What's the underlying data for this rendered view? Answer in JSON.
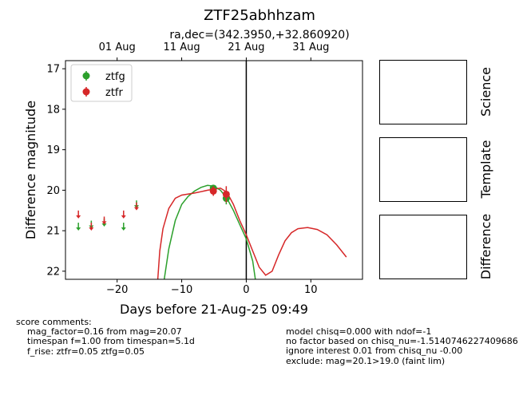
{
  "chart_data": {
    "type": "scatter",
    "title": "ZTF25abhhzam",
    "subtitle": "ra,dec=(342.3950,+32.860920)",
    "xlabel": "Days before 21-Aug-25 09:49",
    "ylabel": "Difference magnitude",
    "xlim": [
      -28,
      18
    ],
    "ylim": [
      22.2,
      16.8
    ],
    "y_inverted": true,
    "x_ticks": [
      -20,
      -10,
      0,
      10
    ],
    "y_ticks": [
      17,
      18,
      19,
      20,
      21,
      22
    ],
    "top_axis_ticks": [
      {
        "x": -20,
        "label": "01 Aug"
      },
      {
        "x": -10,
        "label": "11 Aug"
      },
      {
        "x": 0,
        "label": "21 Aug"
      },
      {
        "x": 10,
        "label": "31 Aug"
      }
    ],
    "legend_position": "upper-left",
    "colors": {
      "ztfg": "#2ca02c",
      "ztfr": "#d62728",
      "vline": "#000000"
    },
    "vline_x": 0,
    "series": [
      {
        "name": "ztfg",
        "detections": [
          {
            "x": -5.1,
            "y": 19.95,
            "err": 0.08
          },
          {
            "x": -3.1,
            "y": 20.2,
            "err": 0.15
          }
        ],
        "upper_limits": [
          {
            "x": -26.0,
            "y": 20.9
          },
          {
            "x": -24.0,
            "y": 20.85
          },
          {
            "x": -22.0,
            "y": 20.8
          },
          {
            "x": -19.0,
            "y": 20.9
          },
          {
            "x": -17.0,
            "y": 20.35
          }
        ],
        "model": [
          {
            "x": -12.7,
            "y": 22.2
          },
          {
            "x": -12.0,
            "y": 21.45
          },
          {
            "x": -11.0,
            "y": 20.75
          },
          {
            "x": -10.0,
            "y": 20.35
          },
          {
            "x": -9.0,
            "y": 20.15
          },
          {
            "x": -8.0,
            "y": 20.02
          },
          {
            "x": -7.0,
            "y": 19.93
          },
          {
            "x": -6.0,
            "y": 19.88
          },
          {
            "x": -5.0,
            "y": 19.9
          },
          {
            "x": -4.0,
            "y": 20.0
          },
          {
            "x": -3.0,
            "y": 20.2
          },
          {
            "x": -2.0,
            "y": 20.5
          },
          {
            "x": -1.0,
            "y": 20.85
          },
          {
            "x": 0.0,
            "y": 21.2
          },
          {
            "x": 1.0,
            "y": 21.75
          },
          {
            "x": 1.4,
            "y": 22.2
          }
        ]
      },
      {
        "name": "ztfr",
        "detections": [
          {
            "x": -5.1,
            "y": 20.02,
            "err": 0.12
          },
          {
            "x": -3.1,
            "y": 20.1,
            "err": 0.2
          }
        ],
        "upper_limits": [
          {
            "x": -26.0,
            "y": 20.6
          },
          {
            "x": -24.0,
            "y": 20.9
          },
          {
            "x": -22.0,
            "y": 20.75
          },
          {
            "x": -19.0,
            "y": 20.6
          },
          {
            "x": -17.0,
            "y": 20.4
          }
        ],
        "model": [
          {
            "x": -13.7,
            "y": 22.2
          },
          {
            "x": -13.4,
            "y": 21.5
          },
          {
            "x": -12.9,
            "y": 20.95
          },
          {
            "x": -12.0,
            "y": 20.45
          },
          {
            "x": -11.0,
            "y": 20.2
          },
          {
            "x": -10.0,
            "y": 20.12
          },
          {
            "x": -8.0,
            "y": 20.07
          },
          {
            "x": -6.0,
            "y": 20.0
          },
          {
            "x": -4.0,
            "y": 19.95
          },
          {
            "x": -3.0,
            "y": 20.05
          },
          {
            "x": -2.0,
            "y": 20.35
          },
          {
            "x": -1.0,
            "y": 20.75
          },
          {
            "x": 0.0,
            "y": 21.1
          },
          {
            "x": 1.0,
            "y": 21.5
          },
          {
            "x": 2.0,
            "y": 21.9
          },
          {
            "x": 3.0,
            "y": 22.1
          },
          {
            "x": 4.0,
            "y": 22.0
          },
          {
            "x": 5.0,
            "y": 21.6
          },
          {
            "x": 6.0,
            "y": 21.25
          },
          {
            "x": 7.0,
            "y": 21.05
          },
          {
            "x": 8.0,
            "y": 20.95
          },
          {
            "x": 9.5,
            "y": 20.92
          },
          {
            "x": 11.0,
            "y": 20.97
          },
          {
            "x": 12.5,
            "y": 21.1
          },
          {
            "x": 14.0,
            "y": 21.35
          },
          {
            "x": 15.5,
            "y": 21.65
          }
        ]
      }
    ]
  },
  "side_panels": [
    "Science",
    "Template",
    "Difference"
  ],
  "score_comments": {
    "heading": "score comments:",
    "left": [
      "mag_factor=0.16 from mag=20.07",
      "timespan f=1.00 from timespan=5.1d",
      "f_rise: ztfr=0.05 ztfg=0.05"
    ],
    "right": [
      "model chisq=0.000 with ndof=-1",
      "no factor based on chisq_nu=-1.5140746227409686",
      "ignore interest 0.01 from chisq_nu -0.00",
      "exclude: mag=20.1>19.0 (faint lim)"
    ]
  }
}
